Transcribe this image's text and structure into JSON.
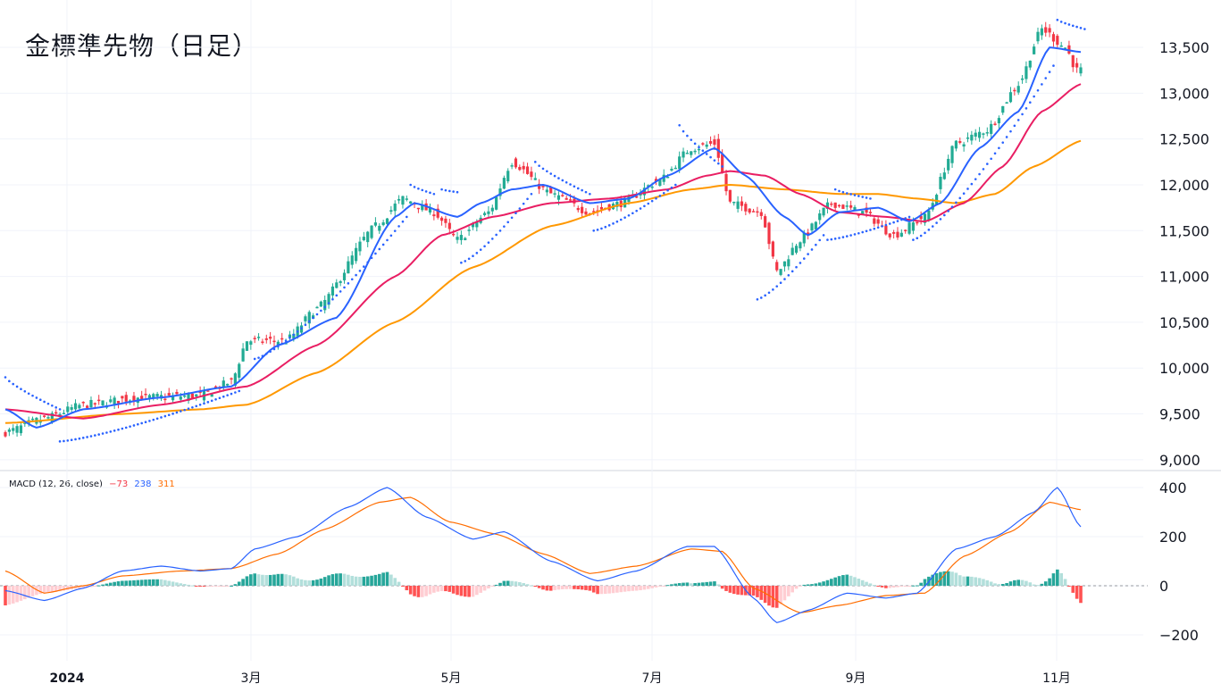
{
  "title": "金標準先物（日足）",
  "macd_legend": {
    "label": "MACD (12, 26, close)",
    "hist_value": "−73",
    "macd_value": "238",
    "signal_value": "311",
    "hist_color": "#f23645",
    "macd_color": "#2962ff",
    "signal_color": "#ff6d00"
  },
  "chart_data": [
    {
      "type": "candlestick",
      "title": "金標準先物（日足）",
      "y_ticks": [
        "13,500",
        "13,000",
        "12,500",
        "12,000",
        "11,500",
        "11,000",
        "10,500",
        "10,000",
        "9,500",
        "9,000"
      ],
      "y_tick_values": [
        13500,
        13000,
        12500,
        12000,
        11500,
        11000,
        10500,
        10000,
        9500,
        9000
      ],
      "ylim": [
        8950,
        13900
      ],
      "x_ticks": [
        "2024",
        "3月",
        "5月",
        "7月",
        "9月",
        "11月"
      ],
      "x_tick_bold": [
        true,
        false,
        false,
        false,
        false,
        false
      ],
      "colors": {
        "up": "#22ab94",
        "down": "#f23645",
        "sma_fast": "#2962ff",
        "sma_mid": "#e91e63",
        "sma_slow": "#ff9800",
        "sar": "#2962ff"
      },
      "close_anchors": [
        {
          "i": 0,
          "v": 9300
        },
        {
          "i": 10,
          "v": 9450
        },
        {
          "i": 20,
          "v": 9600
        },
        {
          "i": 35,
          "v": 9680
        },
        {
          "i": 50,
          "v": 9700
        },
        {
          "i": 58,
          "v": 9850
        },
        {
          "i": 62,
          "v": 10300
        },
        {
          "i": 72,
          "v": 10300
        },
        {
          "i": 80,
          "v": 10650
        },
        {
          "i": 95,
          "v": 11550
        },
        {
          "i": 102,
          "v": 11850
        },
        {
          "i": 110,
          "v": 11700
        },
        {
          "i": 116,
          "v": 11400
        },
        {
          "i": 124,
          "v": 11700
        },
        {
          "i": 130,
          "v": 12250
        },
        {
          "i": 140,
          "v": 11900
        },
        {
          "i": 150,
          "v": 11700
        },
        {
          "i": 158,
          "v": 11800
        },
        {
          "i": 168,
          "v": 12050
        },
        {
          "i": 176,
          "v": 12400
        },
        {
          "i": 182,
          "v": 12450
        },
        {
          "i": 186,
          "v": 11800
        },
        {
          "i": 194,
          "v": 11700
        },
        {
          "i": 198,
          "v": 11050
        },
        {
          "i": 204,
          "v": 11400
        },
        {
          "i": 212,
          "v": 11800
        },
        {
          "i": 220,
          "v": 11700
        },
        {
          "i": 228,
          "v": 11450
        },
        {
          "i": 236,
          "v": 11650
        },
        {
          "i": 244,
          "v": 12450
        },
        {
          "i": 252,
          "v": 12600
        },
        {
          "i": 260,
          "v": 13100
        },
        {
          "i": 266,
          "v": 13700
        },
        {
          "i": 272,
          "v": 13500
        },
        {
          "i": 275,
          "v": 13250
        }
      ],
      "sma_fast": [
        {
          "i": 0,
          "v": 9550
        },
        {
          "i": 8,
          "v": 9350
        },
        {
          "i": 20,
          "v": 9550
        },
        {
          "i": 40,
          "v": 9680
        },
        {
          "i": 58,
          "v": 9800
        },
        {
          "i": 70,
          "v": 10250
        },
        {
          "i": 85,
          "v": 10550
        },
        {
          "i": 100,
          "v": 11650
        },
        {
          "i": 105,
          "v": 11800
        },
        {
          "i": 116,
          "v": 11650
        },
        {
          "i": 122,
          "v": 11800
        },
        {
          "i": 130,
          "v": 11950
        },
        {
          "i": 138,
          "v": 12000
        },
        {
          "i": 150,
          "v": 11800
        },
        {
          "i": 160,
          "v": 11850
        },
        {
          "i": 170,
          "v": 12100
        },
        {
          "i": 182,
          "v": 12400
        },
        {
          "i": 190,
          "v": 12100
        },
        {
          "i": 200,
          "v": 11650
        },
        {
          "i": 206,
          "v": 11450
        },
        {
          "i": 214,
          "v": 11700
        },
        {
          "i": 224,
          "v": 11750
        },
        {
          "i": 232,
          "v": 11600
        },
        {
          "i": 240,
          "v": 11800
        },
        {
          "i": 250,
          "v": 12400
        },
        {
          "i": 260,
          "v": 12800
        },
        {
          "i": 268,
          "v": 13500
        },
        {
          "i": 276,
          "v": 13450
        }
      ],
      "sma_mid": [
        {
          "i": 0,
          "v": 9550
        },
        {
          "i": 20,
          "v": 9450
        },
        {
          "i": 40,
          "v": 9600
        },
        {
          "i": 62,
          "v": 9800
        },
        {
          "i": 80,
          "v": 10250
        },
        {
          "i": 100,
          "v": 11000
        },
        {
          "i": 112,
          "v": 11450
        },
        {
          "i": 125,
          "v": 11650
        },
        {
          "i": 140,
          "v": 11800
        },
        {
          "i": 155,
          "v": 11850
        },
        {
          "i": 170,
          "v": 11950
        },
        {
          "i": 180,
          "v": 12100
        },
        {
          "i": 186,
          "v": 12150
        },
        {
          "i": 195,
          "v": 12100
        },
        {
          "i": 204,
          "v": 11900
        },
        {
          "i": 214,
          "v": 11700
        },
        {
          "i": 226,
          "v": 11650
        },
        {
          "i": 236,
          "v": 11600
        },
        {
          "i": 246,
          "v": 11800
        },
        {
          "i": 256,
          "v": 12200
        },
        {
          "i": 266,
          "v": 12800
        },
        {
          "i": 276,
          "v": 13100
        }
      ],
      "sma_slow": [
        {
          "i": 0,
          "v": 9400
        },
        {
          "i": 30,
          "v": 9500
        },
        {
          "i": 50,
          "v": 9550
        },
        {
          "i": 62,
          "v": 9600
        },
        {
          "i": 80,
          "v": 9950
        },
        {
          "i": 100,
          "v": 10500
        },
        {
          "i": 120,
          "v": 11100
        },
        {
          "i": 140,
          "v": 11550
        },
        {
          "i": 160,
          "v": 11800
        },
        {
          "i": 176,
          "v": 11950
        },
        {
          "i": 186,
          "v": 12000
        },
        {
          "i": 200,
          "v": 11950
        },
        {
          "i": 214,
          "v": 11900
        },
        {
          "i": 224,
          "v": 11900
        },
        {
          "i": 234,
          "v": 11850
        },
        {
          "i": 244,
          "v": 11800
        },
        {
          "i": 254,
          "v": 11900
        },
        {
          "i": 264,
          "v": 12200
        },
        {
          "i": 276,
          "v": 12480
        }
      ],
      "sar_segments": [
        {
          "side": "above",
          "from": 0,
          "to": 14,
          "start": 9900,
          "end": 9550
        },
        {
          "side": "below",
          "from": 14,
          "to": 60,
          "start": 9200,
          "end": 9750
        },
        {
          "side": "below",
          "from": 64,
          "to": 103,
          "start": 10100,
          "end": 11650
        },
        {
          "side": "above",
          "from": 104,
          "to": 110,
          "start": 12000,
          "end": 11900
        },
        {
          "side": "above",
          "from": 112,
          "to": 116,
          "start": 11950,
          "end": 11920
        },
        {
          "side": "below",
          "from": 117,
          "to": 135,
          "start": 11150,
          "end": 11900
        },
        {
          "side": "above",
          "from": 136,
          "to": 150,
          "start": 12250,
          "end": 11900
        },
        {
          "side": "below",
          "from": 151,
          "to": 172,
          "start": 11500,
          "end": 12000
        },
        {
          "side": "above",
          "from": 173,
          "to": 184,
          "start": 12650,
          "end": 12200
        },
        {
          "side": "below",
          "from": 193,
          "to": 210,
          "start": 10750,
          "end": 11450
        },
        {
          "side": "below",
          "from": 211,
          "to": 232,
          "start": 11400,
          "end": 11650
        },
        {
          "side": "above",
          "from": 213,
          "to": 222,
          "start": 11950,
          "end": 11850
        },
        {
          "side": "below",
          "from": 233,
          "to": 269,
          "start": 11400,
          "end": 13300
        },
        {
          "side": "above",
          "from": 270,
          "to": 277,
          "start": 13800,
          "end": 13700
        }
      ]
    },
    {
      "type": "macd",
      "title": "MACD (12, 26, close)",
      "y_ticks": [
        "400",
        "200",
        "0",
        "−200"
      ],
      "y_tick_values": [
        400,
        200,
        0,
        -200
      ],
      "ylim": [
        -240,
        440
      ],
      "macd_anchors": [
        {
          "i": 0,
          "v": -20
        },
        {
          "i": 10,
          "v": -60
        },
        {
          "i": 20,
          "v": -10
        },
        {
          "i": 30,
          "v": 60
        },
        {
          "i": 40,
          "v": 80
        },
        {
          "i": 50,
          "v": 60
        },
        {
          "i": 58,
          "v": 70
        },
        {
          "i": 64,
          "v": 150
        },
        {
          "i": 75,
          "v": 200
        },
        {
          "i": 88,
          "v": 320
        },
        {
          "i": 98,
          "v": 400
        },
        {
          "i": 108,
          "v": 280
        },
        {
          "i": 120,
          "v": 190
        },
        {
          "i": 128,
          "v": 220
        },
        {
          "i": 140,
          "v": 100
        },
        {
          "i": 152,
          "v": 20
        },
        {
          "i": 162,
          "v": 60
        },
        {
          "i": 175,
          "v": 160
        },
        {
          "i": 182,
          "v": 160
        },
        {
          "i": 192,
          "v": -50
        },
        {
          "i": 198,
          "v": -150
        },
        {
          "i": 206,
          "v": -100
        },
        {
          "i": 216,
          "v": -30
        },
        {
          "i": 226,
          "v": -50
        },
        {
          "i": 234,
          "v": -30
        },
        {
          "i": 244,
          "v": 150
        },
        {
          "i": 254,
          "v": 200
        },
        {
          "i": 264,
          "v": 300
        },
        {
          "i": 270,
          "v": 400
        },
        {
          "i": 276,
          "v": 240
        }
      ],
      "signal_anchors": [
        {
          "i": 0,
          "v": 60
        },
        {
          "i": 10,
          "v": -30
        },
        {
          "i": 20,
          "v": 0
        },
        {
          "i": 30,
          "v": 40
        },
        {
          "i": 45,
          "v": 60
        },
        {
          "i": 58,
          "v": 70
        },
        {
          "i": 70,
          "v": 130
        },
        {
          "i": 82,
          "v": 230
        },
        {
          "i": 96,
          "v": 340
        },
        {
          "i": 104,
          "v": 360
        },
        {
          "i": 114,
          "v": 260
        },
        {
          "i": 126,
          "v": 210
        },
        {
          "i": 138,
          "v": 130
        },
        {
          "i": 150,
          "v": 50
        },
        {
          "i": 162,
          "v": 80
        },
        {
          "i": 176,
          "v": 150
        },
        {
          "i": 184,
          "v": 140
        },
        {
          "i": 192,
          "v": -10
        },
        {
          "i": 204,
          "v": -110
        },
        {
          "i": 214,
          "v": -80
        },
        {
          "i": 226,
          "v": -40
        },
        {
          "i": 236,
          "v": -30
        },
        {
          "i": 246,
          "v": 120
        },
        {
          "i": 258,
          "v": 220
        },
        {
          "i": 268,
          "v": 340
        },
        {
          "i": 276,
          "v": 310
        }
      ]
    }
  ]
}
